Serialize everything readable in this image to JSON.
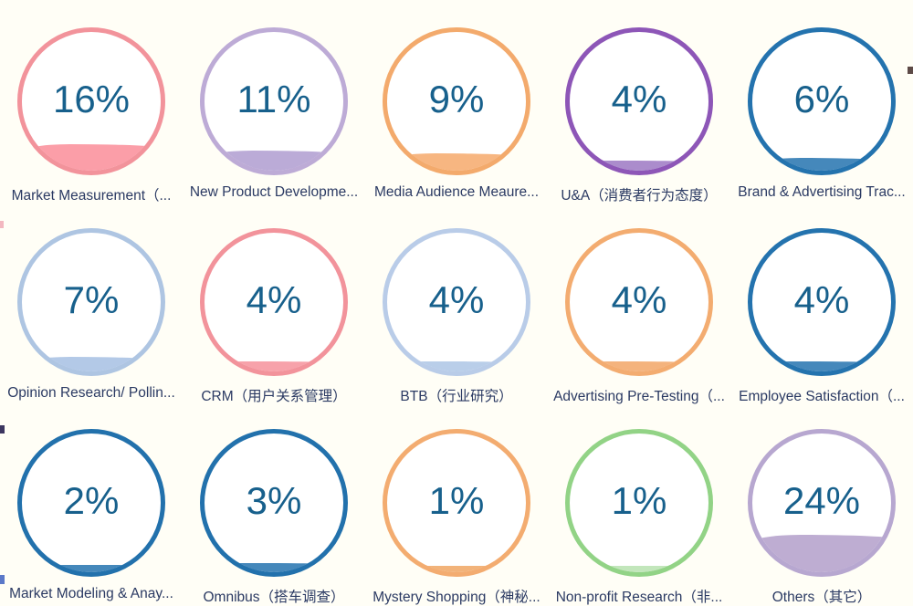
{
  "chart_data": {
    "type": "gauge",
    "subtype": "liquid-fill-gauge-grid",
    "title": "",
    "grid": {
      "rows": 3,
      "cols": 5
    },
    "percent_text_color": "#17608c",
    "label_text_color": "#2b3a63",
    "background_color": "#fffef6",
    "categories": [
      "Market Measurement（...",
      "New Product Developme...",
      "Media Audience Meaure...",
      "U&A（消费者行为态度）",
      "Brand & Advertising Trac...",
      "Opinion Research/ Pollin...",
      "CRM（用户关系管理）",
      "BTB（行业研究）",
      "Advertising Pre-Testing（...",
      "Employee Satisfaction（...",
      "Market Modeling & Anay...",
      "Omnibus（搭车调查）",
      "Mystery Shopping（神秘...",
      "Non-profit Research（非...",
      "Others（其它）"
    ],
    "values": [
      16,
      11,
      9,
      4,
      6,
      7,
      4,
      4,
      4,
      4,
      2,
      3,
      1,
      1,
      24
    ],
    "items": [
      {
        "label": "Market Measurement（...",
        "value": 16,
        "percent": "16%",
        "ring_color": "#f2939b",
        "fill_color": "#fa919c"
      },
      {
        "label": "New Product Developme...",
        "value": 11,
        "percent": "11%",
        "ring_color": "#bdabd6",
        "fill_color": "#b29fd1"
      },
      {
        "label": "Media Audience Meaure...",
        "value": 9,
        "percent": "9%",
        "ring_color": "#f3aa6c",
        "fill_color": "#f6ac70"
      },
      {
        "label": "U&A（消费者行为态度）",
        "value": 4,
        "percent": "4%",
        "ring_color": "#8d56b7",
        "fill_color": "#9f7cc5"
      },
      {
        "label": "Brand & Advertising Trac...",
        "value": 6,
        "percent": "6%",
        "ring_color": "#2473ae",
        "fill_color": "#2b77b2"
      },
      {
        "label": "Opinion Research/ Pollin...",
        "value": 7,
        "percent": "7%",
        "ring_color": "#aec5e2",
        "fill_color": "#a8c2e4"
      },
      {
        "label": "CRM（用户关系管理）",
        "value": 4,
        "percent": "4%",
        "ring_color": "#f2939b",
        "fill_color": "#f6959e"
      },
      {
        "label": "BTB（行业研究）",
        "value": 4,
        "percent": "4%",
        "ring_color": "#b9cce8",
        "fill_color": "#afc7e6"
      },
      {
        "label": "Advertising Pre-Testing（...",
        "value": 4,
        "percent": "4%",
        "ring_color": "#f3ac70",
        "fill_color": "#f2a96b"
      },
      {
        "label": "Employee Satisfaction（...",
        "value": 4,
        "percent": "4%",
        "ring_color": "#2473ae",
        "fill_color": "#2b77b2"
      },
      {
        "label": "Market Modeling & Anay...",
        "value": 2,
        "percent": "2%",
        "ring_color": "#2271ac",
        "fill_color": "#2b77b2"
      },
      {
        "label": "Omnibus（搭车调查）",
        "value": 3,
        "percent": "3%",
        "ring_color": "#2271ac",
        "fill_color": "#2b77b2"
      },
      {
        "label": "Mystery Shopping（神秘...",
        "value": 1,
        "percent": "1%",
        "ring_color": "#f3ac70",
        "fill_color": "#f0a868"
      },
      {
        "label": "Non-profit Research（非...",
        "value": 1,
        "percent": "1%",
        "ring_color": "#92d386",
        "fill_color": "#b9e2b2"
      },
      {
        "label": "Others（其它）",
        "value": 24,
        "percent": "24%",
        "ring_color": "#b7a7d0",
        "fill_color": "#b5a2cc"
      }
    ]
  }
}
